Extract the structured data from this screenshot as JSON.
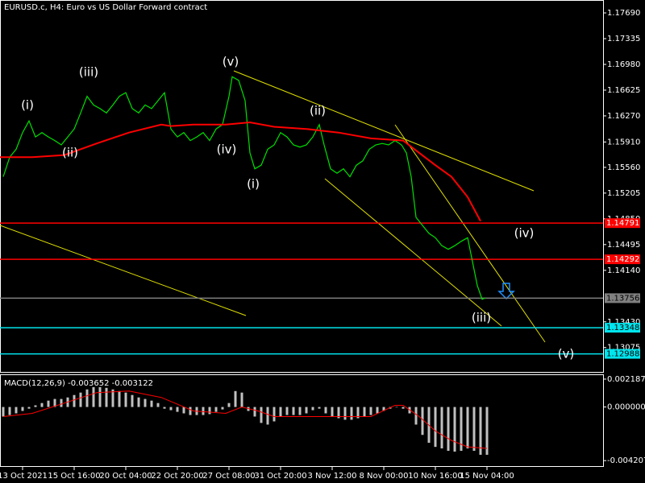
{
  "chart_data": [
    {
      "type": "line",
      "title": "EURUSD.c, H4:  Euro vs US Dollar Forward contract",
      "xlim": [
        0,
        187
      ],
      "xticks": [
        {
          "value": 7,
          "label": "13 Oct 2021"
        },
        {
          "value": 23,
          "label": "15 Oct 16:00"
        },
        {
          "value": 39,
          "label": "20 Oct 04:00"
        },
        {
          "value": 55,
          "label": "22 Oct 20:00"
        },
        {
          "value": 71,
          "label": "27 Oct 08:00"
        },
        {
          "value": 87,
          "label": "31 Oct 20:00"
        },
        {
          "value": 103,
          "label": "3 Nov 12:00"
        },
        {
          "value": 119,
          "label": "8 Nov 00:00"
        },
        {
          "value": 135,
          "label": "10 Nov 16:00"
        },
        {
          "value": 151,
          "label": "15 Nov 04:00"
        }
      ],
      "ylim": [
        1.12739,
        1.17868
      ],
      "yticks": [
        {
          "value": 1.1769,
          "label": "1.17690"
        },
        {
          "value": 1.17335,
          "label": "1.17335"
        },
        {
          "value": 1.1698,
          "label": "1.16980"
        },
        {
          "value": 1.16625,
          "label": "1.16625"
        },
        {
          "value": 1.1627,
          "label": "1.16270"
        },
        {
          "value": 1.1591,
          "label": "1.15910"
        },
        {
          "value": 1.1556,
          "label": "1.15560"
        },
        {
          "value": 1.15205,
          "label": "1.15205"
        },
        {
          "value": 1.1485,
          "label": "1.14850"
        },
        {
          "value": 1.14495,
          "label": "1.14495"
        },
        {
          "value": 1.1414,
          "label": "1.14140"
        },
        {
          "value": 1.1343,
          "label": "1.13430"
        },
        {
          "value": 1.13075,
          "label": "1.13075"
        }
      ],
      "series": [
        {
          "color": "#00e000",
          "x": [
            1,
            3,
            5,
            7,
            9,
            11,
            13,
            15,
            17,
            19,
            21,
            23,
            25,
            27,
            29,
            31,
            33,
            35,
            37,
            39,
            41,
            43,
            45,
            47,
            49,
            51,
            53,
            55,
            57,
            59,
            61,
            63,
            65,
            67,
            69,
            71,
            72,
            74,
            76,
            77.5,
            79,
            81,
            83,
            85,
            87,
            89,
            91,
            93,
            95,
            97,
            99,
            100.5,
            102.5,
            104.5,
            106.5,
            108.5,
            110.5,
            112.5,
            114.5,
            116.5,
            118.5,
            120.5,
            122.5,
            124.5,
            126,
            127.5,
            129,
            131,
            133,
            135,
            137,
            139,
            141,
            143,
            145,
            146.5,
            148,
            149.5,
            150.5
          ],
          "values": [
            1.1543,
            1.157,
            1.1581,
            1.1604,
            1.162,
            1.1598,
            1.1604,
            1.1598,
            1.1593,
            1.1587,
            1.1598,
            1.1609,
            1.1631,
            1.1654,
            1.1642,
            1.1637,
            1.1631,
            1.1642,
            1.1654,
            1.1659,
            1.1637,
            1.1631,
            1.1642,
            1.1637,
            1.1648,
            1.1659,
            1.1609,
            1.1598,
            1.1604,
            1.1593,
            1.1598,
            1.1604,
            1.1593,
            1.1609,
            1.1615,
            1.1654,
            1.1681,
            1.1676,
            1.1648,
            1.1576,
            1.1554,
            1.1559,
            1.1581,
            1.1587,
            1.1604,
            1.1598,
            1.1587,
            1.1584,
            1.1587,
            1.1598,
            1.1615,
            1.1587,
            1.1554,
            1.1548,
            1.1554,
            1.1543,
            1.1559,
            1.1565,
            1.1581,
            1.1587,
            1.1589,
            1.1587,
            1.1593,
            1.1587,
            1.1576,
            1.1543,
            1.1487,
            1.1476,
            1.1465,
            1.1459,
            1.1448,
            1.1443,
            1.1448,
            1.1454,
            1.1459,
            1.1426,
            1.1393,
            1.1374,
            1.1376
          ]
        },
        {
          "color": "#ff0000",
          "x": [
            0,
            10,
            20,
            30,
            40,
            50,
            53,
            60,
            70,
            77.5,
            85,
            95,
            105,
            115,
            125,
            130,
            135,
            140,
            145,
            149
          ],
          "values": [
            1.157,
            1.157,
            1.1573,
            1.1589,
            1.1604,
            1.1615,
            1.1613,
            1.1615,
            1.1615,
            1.1618,
            1.1612,
            1.1609,
            1.1604,
            1.1596,
            1.1593,
            1.1576,
            1.1559,
            1.1543,
            1.1515,
            1.1482
          ]
        }
      ],
      "levels": {
        "values": [
          1.14791,
          1.14292,
          1.13756,
          1.13348,
          1.12988
        ],
        "colors": [
          "#ff0000",
          "#ff0000",
          "#808080",
          "#00e5ee",
          "#00e5ee"
        ]
      },
      "annotations": [
        "(i)",
        "(iii)",
        "(ii)",
        "(v)",
        "(iv)",
        "(i)",
        "(ii)",
        "(iv)",
        "(iii)",
        "(v)"
      ]
    },
    {
      "type": "bar",
      "title": "MACD(12,26,9) -0.003652 -0.003122",
      "xlim": [
        0,
        187
      ],
      "ylim": [
        -0.0047,
        0.0025
      ],
      "yticks": [
        0.002187,
        {
          "value": 0,
          "label": "0.000000"
        },
        -0.004207
      ],
      "color": "#c0c0c0",
      "x": [
        1,
        3,
        5,
        7,
        9,
        11,
        13,
        15,
        17,
        19,
        21,
        23,
        25,
        27,
        29,
        31,
        33,
        35,
        37,
        39,
        41,
        43,
        45,
        47,
        49,
        51,
        53,
        55,
        57,
        59,
        61,
        63,
        65,
        67,
        69,
        71,
        73,
        75,
        77,
        79,
        81,
        83,
        85,
        87,
        89,
        91,
        93,
        95,
        97,
        99,
        101,
        103,
        105,
        107,
        109,
        111,
        113,
        115,
        117,
        119,
        121,
        123,
        125,
        127,
        129,
        131,
        133,
        135,
        137,
        139,
        141,
        143,
        145,
        147,
        149,
        151
      ],
      "values": [
        -0.00075,
        -0.00063,
        -0.0005,
        -0.00031,
        -0.00013,
        0.00013,
        0.00031,
        0.0005,
        0.00063,
        0.00063,
        0.00075,
        0.00094,
        0.00113,
        0.00138,
        0.00156,
        0.00156,
        0.0015,
        0.00138,
        0.00125,
        0.00113,
        0.00094,
        0.00075,
        0.00063,
        0.0005,
        0.00031,
        -0.00013,
        -0.00025,
        -0.00038,
        -0.0005,
        -0.00063,
        -0.00063,
        -0.00063,
        -0.00056,
        -0.00038,
        -0.00019,
        0.00031,
        0.00125,
        0.00113,
        -0.00031,
        -0.00075,
        -0.00125,
        -0.00138,
        -0.00113,
        -0.00075,
        -0.00063,
        -0.00063,
        -0.00063,
        -0.0005,
        -0.00025,
        -0.00013,
        -0.0005,
        -0.00075,
        -0.00088,
        -0.001,
        -0.001,
        -0.00088,
        -0.00075,
        -0.00063,
        -0.0005,
        -0.00031,
        -0.00013,
        0,
        -0.00013,
        -0.0005,
        -0.00138,
        -0.00219,
        -0.00281,
        -0.00313,
        -0.00325,
        -0.00344,
        -0.0035,
        -0.00344,
        -0.00325,
        -0.00344,
        -0.00375,
        -0.00375
      ],
      "signal": {
        "color": "#ff0000",
        "x": [
          1,
          10,
          20,
          30,
          40,
          50,
          60,
          70,
          75,
          80,
          85,
          95,
          105,
          115,
          122.5,
          125,
          130,
          135,
          140,
          145,
          151
        ],
        "values": [
          -0.00075,
          -0.0005,
          0.00031,
          0.00113,
          0.00125,
          0.00075,
          -0.00031,
          -0.0005,
          0,
          -0.00031,
          -0.00075,
          -0.00075,
          -0.00075,
          -0.00075,
          0.00013,
          0.00013,
          -0.00075,
          -0.00188,
          -0.00263,
          -0.00313,
          -0.00325
        ]
      }
    }
  ]
}
